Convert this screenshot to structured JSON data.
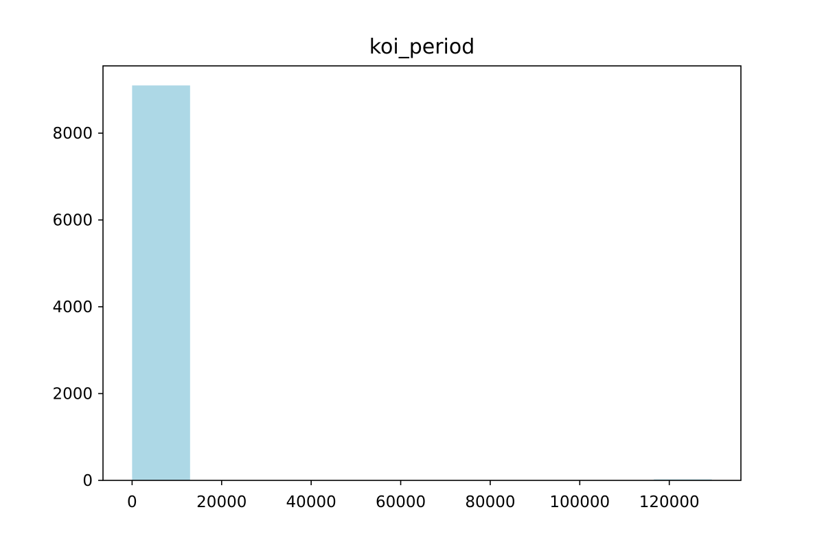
{
  "chart_data": {
    "type": "bar",
    "title": "koi_period",
    "xlabel": "",
    "ylabel": "",
    "xlim": [
      -6500,
      136000
    ],
    "ylim": [
      0,
      9550
    ],
    "bins": [
      {
        "start": 0,
        "end": 12950,
        "count": 9100
      },
      {
        "start": 12950,
        "end": 25900,
        "count": 0
      },
      {
        "start": 25900,
        "end": 38850,
        "count": 0
      },
      {
        "start": 38850,
        "end": 51800,
        "count": 0
      },
      {
        "start": 51800,
        "end": 64750,
        "count": 0
      },
      {
        "start": 64750,
        "end": 77700,
        "count": 0
      },
      {
        "start": 77700,
        "end": 90650,
        "count": 0
      },
      {
        "start": 90650,
        "end": 103600,
        "count": 0
      },
      {
        "start": 103600,
        "end": 116550,
        "count": 0
      },
      {
        "start": 116550,
        "end": 129500,
        "count": 1
      }
    ],
    "x_ticks": [
      0,
      20000,
      40000,
      60000,
      80000,
      100000,
      120000
    ],
    "y_ticks": [
      0,
      2000,
      4000,
      6000,
      8000
    ],
    "bar_color": "#add8e6",
    "grid": false,
    "legend": "none"
  }
}
